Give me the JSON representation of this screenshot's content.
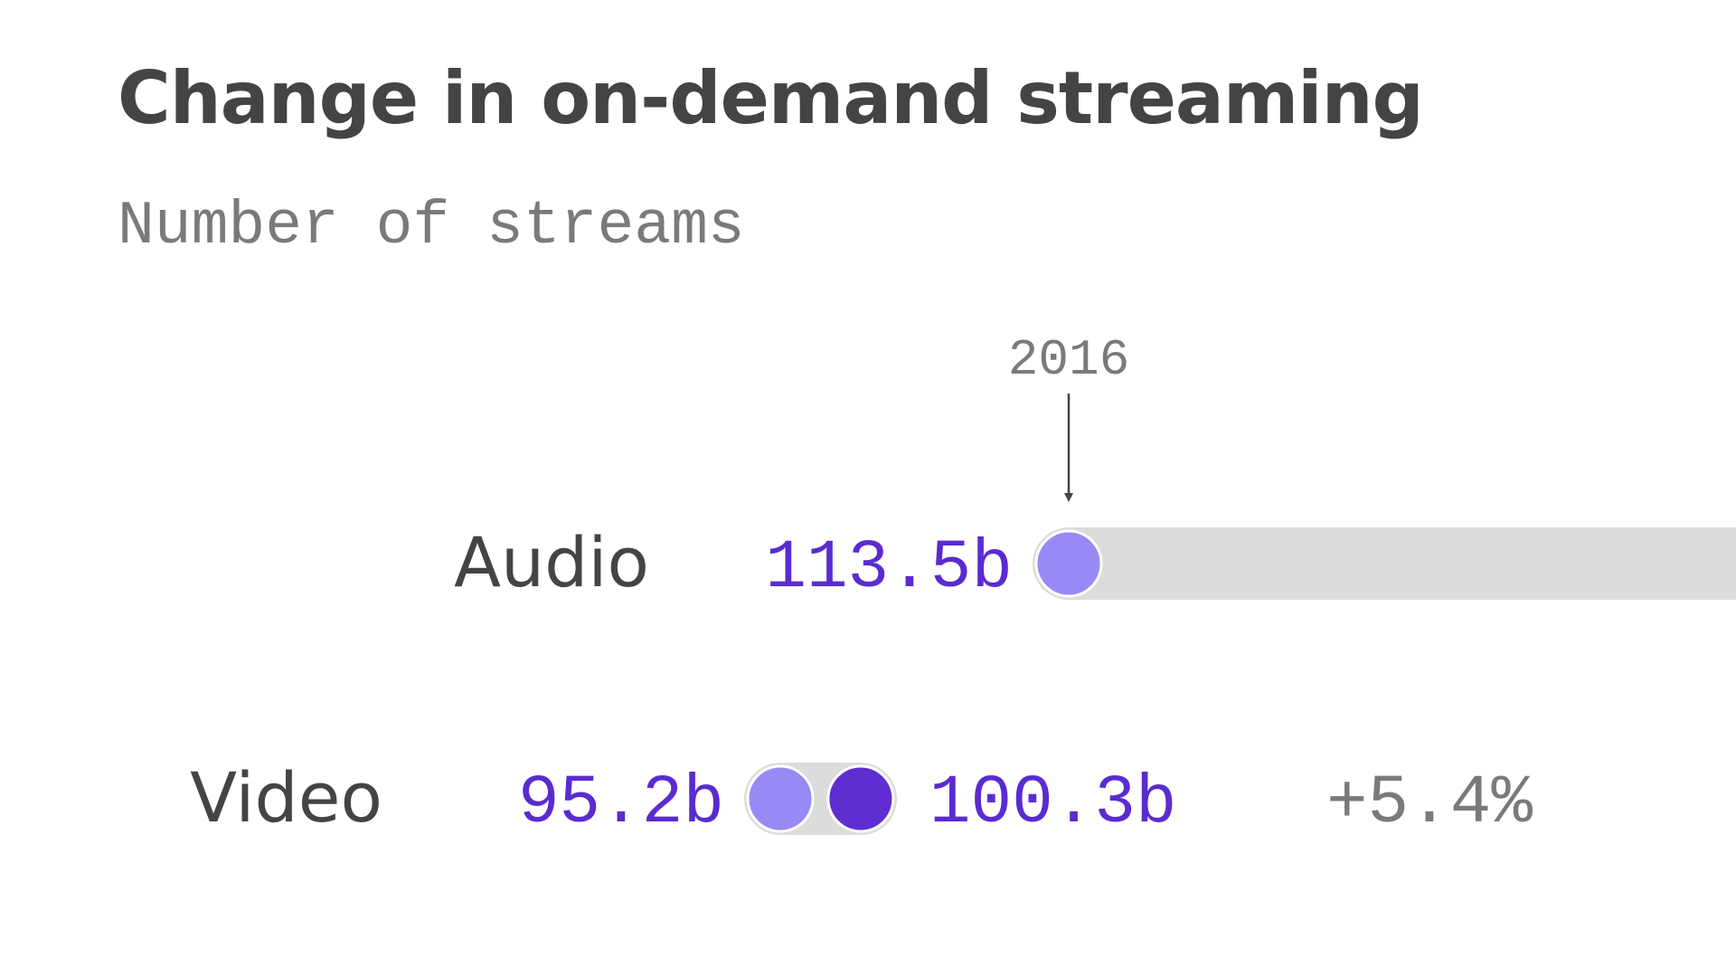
{
  "title": "Change in on-demand streaming",
  "subtitle": "Number of streams",
  "colors": {
    "start": "#978af4",
    "end": "#5e2ed1",
    "track": "#dcdcdc",
    "value_text": "#5a2bd0",
    "label_text": "#444444",
    "muted_text": "#7a7a7a"
  },
  "annotation": {
    "label": "2016"
  },
  "chart_data": {
    "type": "dumbbell",
    "title": "Change in on-demand streaming",
    "subtitle": "Number of streams",
    "annotation": "2016",
    "series": [
      {
        "name": "2016"
      },
      {
        "name": ""
      }
    ],
    "rows": [
      {
        "category": "Audio",
        "start": 113.5,
        "start_label": "113.5b",
        "end": null,
        "end_label": "",
        "change_label": ""
      },
      {
        "category": "Video",
        "start": 95.2,
        "start_label": "95.2b",
        "end": 100.3,
        "end_label": "100.3b",
        "change_label": "+5.4%"
      }
    ]
  }
}
